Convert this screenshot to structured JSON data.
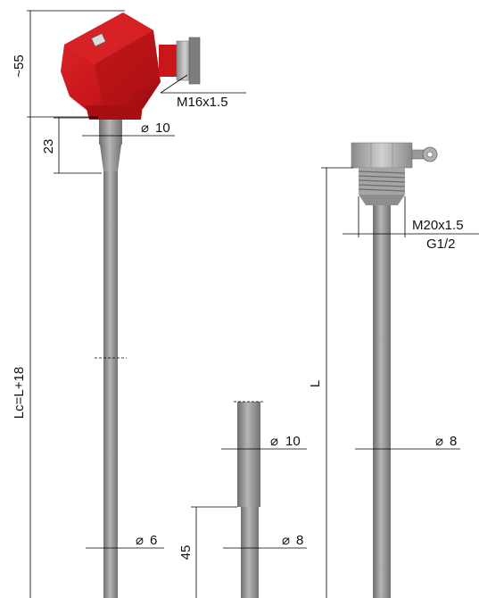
{
  "colors": {
    "head_red": "#c8161a",
    "head_red_dark": "#8c0c0f",
    "metal": "#9a9a9a",
    "metal_dark": "#6f6f6f",
    "metal_light": "#c9c9c9"
  },
  "icons": [
    "thermocouple-head-icon",
    "thread-fitting-icon"
  ],
  "dimensions": {
    "head_height": "~55",
    "cable_gland_thread": "M16x1.5",
    "neck_diameter": "10",
    "neck_length": "23",
    "total_length": "Lc=L+18",
    "probe_diameter": "6",
    "step_upper_diameter": "10",
    "step_length": "45",
    "step_lower_diameter": "8",
    "fitting_thread_metric": "M20x1.5",
    "fitting_thread_pipe": "G1/2",
    "insertion_length": "L",
    "fitting_probe_diameter": "8"
  }
}
